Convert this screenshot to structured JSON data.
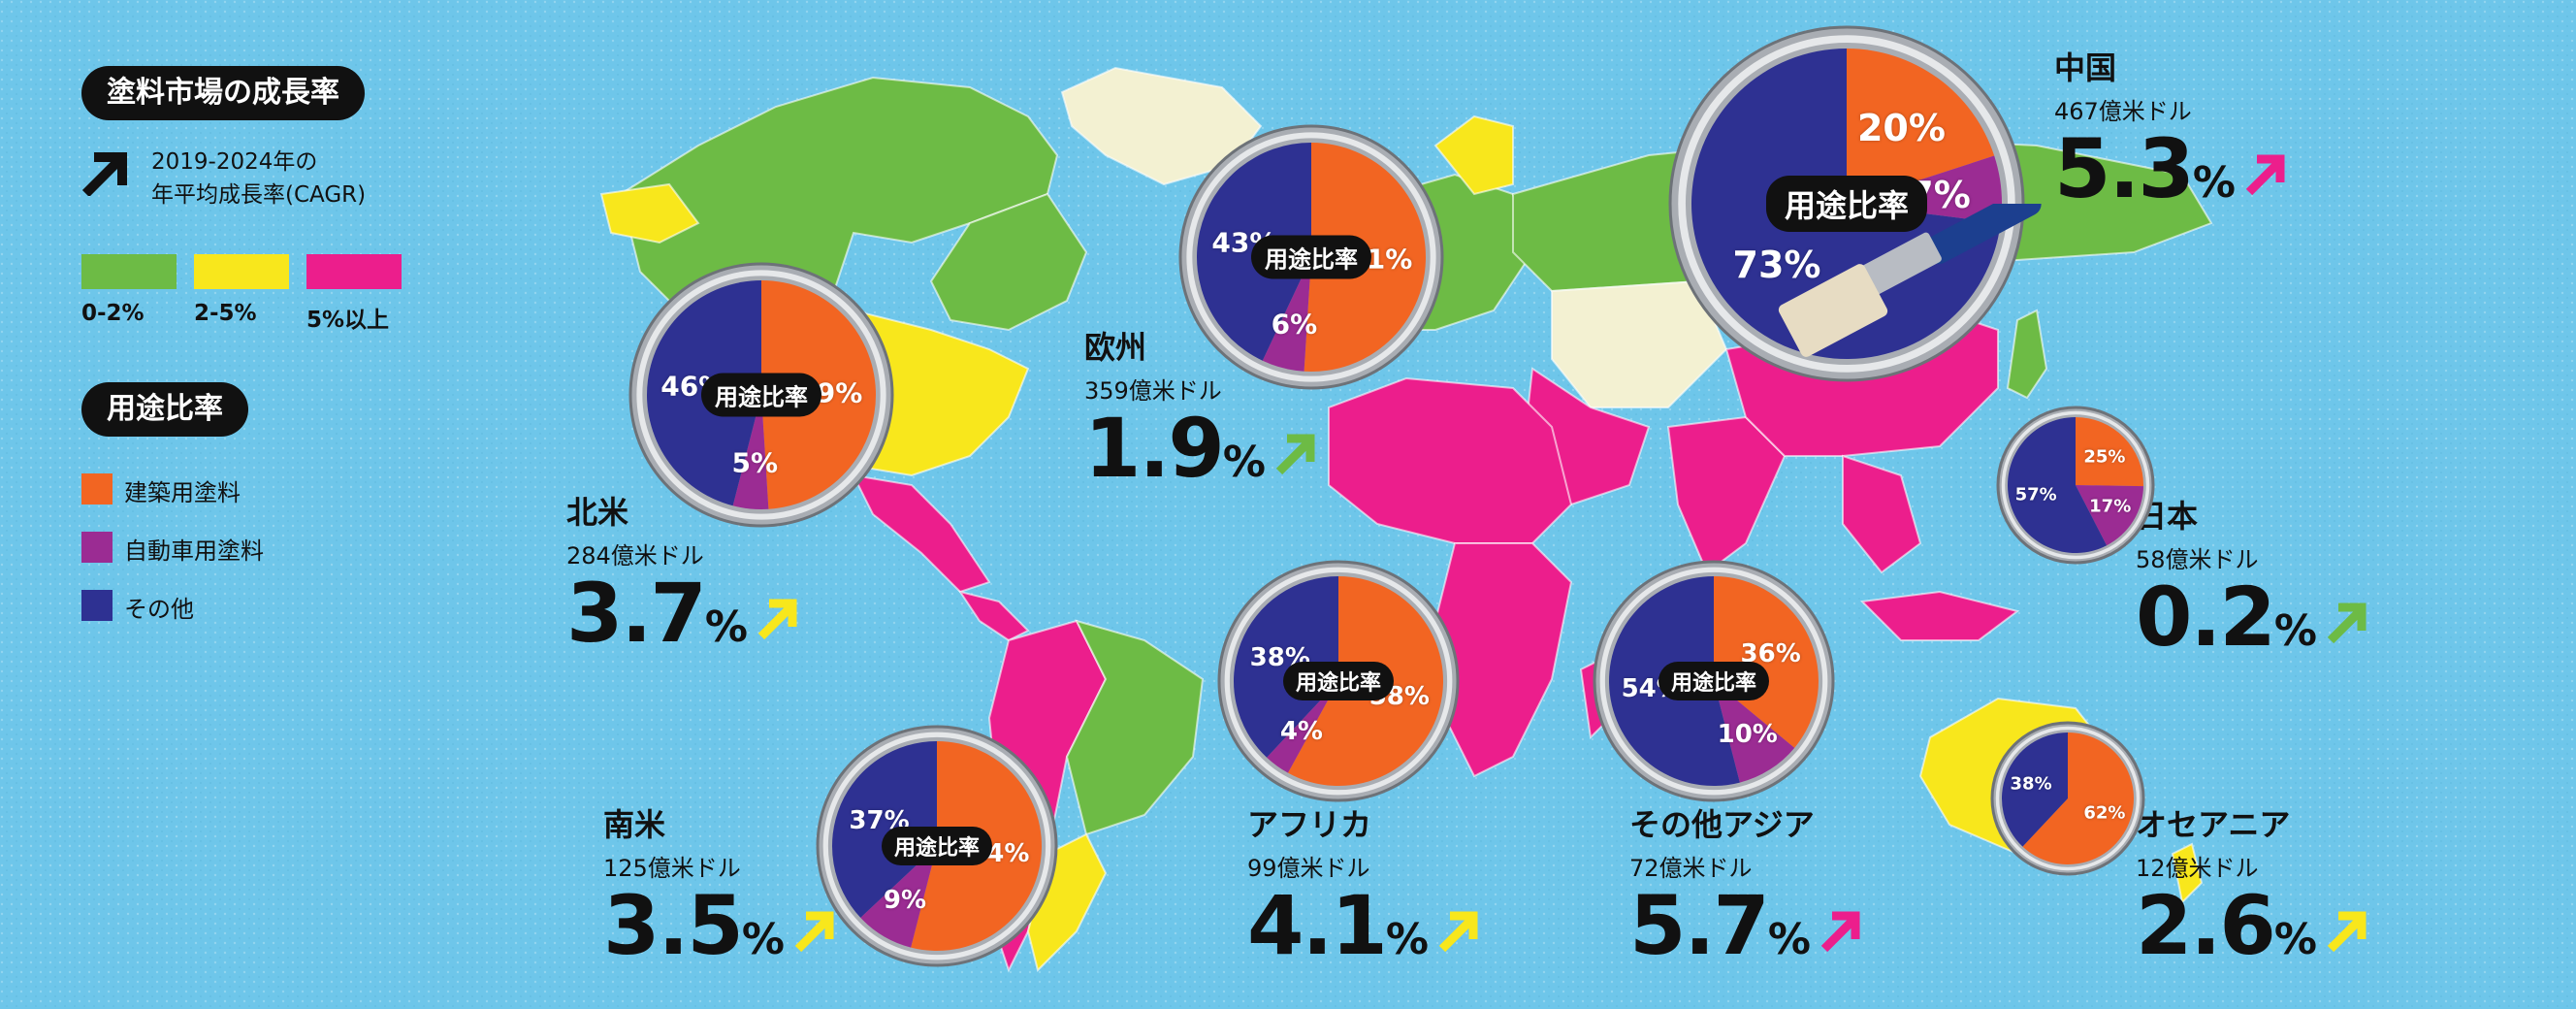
{
  "colors": {
    "ocean": "#6ec6ea",
    "low": "#6dbb45",
    "mid": "#f8e71c",
    "high": "#ec1e8c",
    "nodata": "#f3f1d2",
    "arch": "#f26522",
    "auto": "#9b2c93",
    "other": "#2e3192"
  },
  "legend": {
    "title": "塗料市場の成長率",
    "arrow_desc_line1": "2019-2024年の",
    "arrow_desc_line2": "年平均成長率(CAGR)",
    "ranges": [
      "0-2%",
      "2-5%",
      "5%以上"
    ],
    "usage_title": "用途比率",
    "usage_items": [
      "建築用塗料",
      "自動車用塗料",
      "その他"
    ]
  },
  "pie_center_label": "用途比率",
  "chart_data": {
    "type": "pie",
    "pie_categories": [
      "建築用塗料",
      "自動車用塗料",
      "その他"
    ],
    "regions": [
      {
        "key": "north_america",
        "name": "北米",
        "market": "284億米ドル",
        "cagr": "3.7",
        "unit": "%",
        "tier": "mid",
        "shares": [
          49,
          5,
          46
        ]
      },
      {
        "key": "europe",
        "name": "欧州",
        "market": "359億米ドル",
        "cagr": "1.9",
        "unit": "%",
        "tier": "low",
        "shares": [
          51,
          6,
          43
        ]
      },
      {
        "key": "china",
        "name": "中国",
        "market": "467億米ドル",
        "cagr": "5.3",
        "unit": "%",
        "tier": "high",
        "shares": [
          20,
          7,
          73
        ]
      },
      {
        "key": "japan",
        "name": "日本",
        "market": "58億米ドル",
        "cagr": "0.2",
        "unit": "%",
        "tier": "low",
        "shares": [
          25,
          17,
          57
        ]
      },
      {
        "key": "south_america",
        "name": "南米",
        "market": "125億米ドル",
        "cagr": "3.5",
        "unit": "%",
        "tier": "mid",
        "shares": [
          54,
          9,
          37
        ]
      },
      {
        "key": "africa",
        "name": "アフリカ",
        "market": "99億米ドル",
        "cagr": "4.1",
        "unit": "%",
        "tier": "mid",
        "shares": [
          58,
          4,
          38
        ]
      },
      {
        "key": "other_asia",
        "name": "その他アジア",
        "market": "72億米ドル",
        "cagr": "5.7",
        "unit": "%",
        "tier": "high",
        "shares": [
          36,
          10,
          54
        ]
      },
      {
        "key": "oceania",
        "name": "オセアニア",
        "market": "12億米ドル",
        "cagr": "2.6",
        "unit": "%",
        "tier": "mid",
        "shares": [
          62,
          0,
          38
        ]
      }
    ]
  }
}
